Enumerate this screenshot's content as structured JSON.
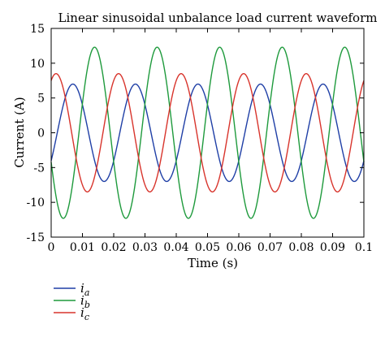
{
  "chart_data": {
    "type": "line",
    "title": "Linear sinusoidal unbalance load current waveform",
    "xlabel": "Time (s)",
    "ylabel": "Current (A)",
    "xlim": [
      0,
      0.1
    ],
    "ylim": [
      -15,
      15
    ],
    "xticks": [
      0,
      0.01,
      0.02,
      0.03,
      0.04,
      0.05,
      0.06,
      0.07,
      0.08,
      0.09,
      0.1
    ],
    "yticks": [
      -15,
      -10,
      -5,
      0,
      5,
      10,
      15
    ],
    "grid": false,
    "legend_position": "bottom-left",
    "frequency_hz": 50,
    "series": [
      {
        "name": "i",
        "subscript": "a",
        "color": "#1f3fa6",
        "amplitude": 7.0,
        "phase_deg": -35
      },
      {
        "name": "i",
        "subscript": "b",
        "color": "#1e9a3c",
        "amplitude": 12.3,
        "phase_deg": -160
      },
      {
        "name": "i",
        "subscript": "c",
        "color": "#d8342c",
        "amplitude": 8.5,
        "phase_deg": 62
      }
    ]
  }
}
